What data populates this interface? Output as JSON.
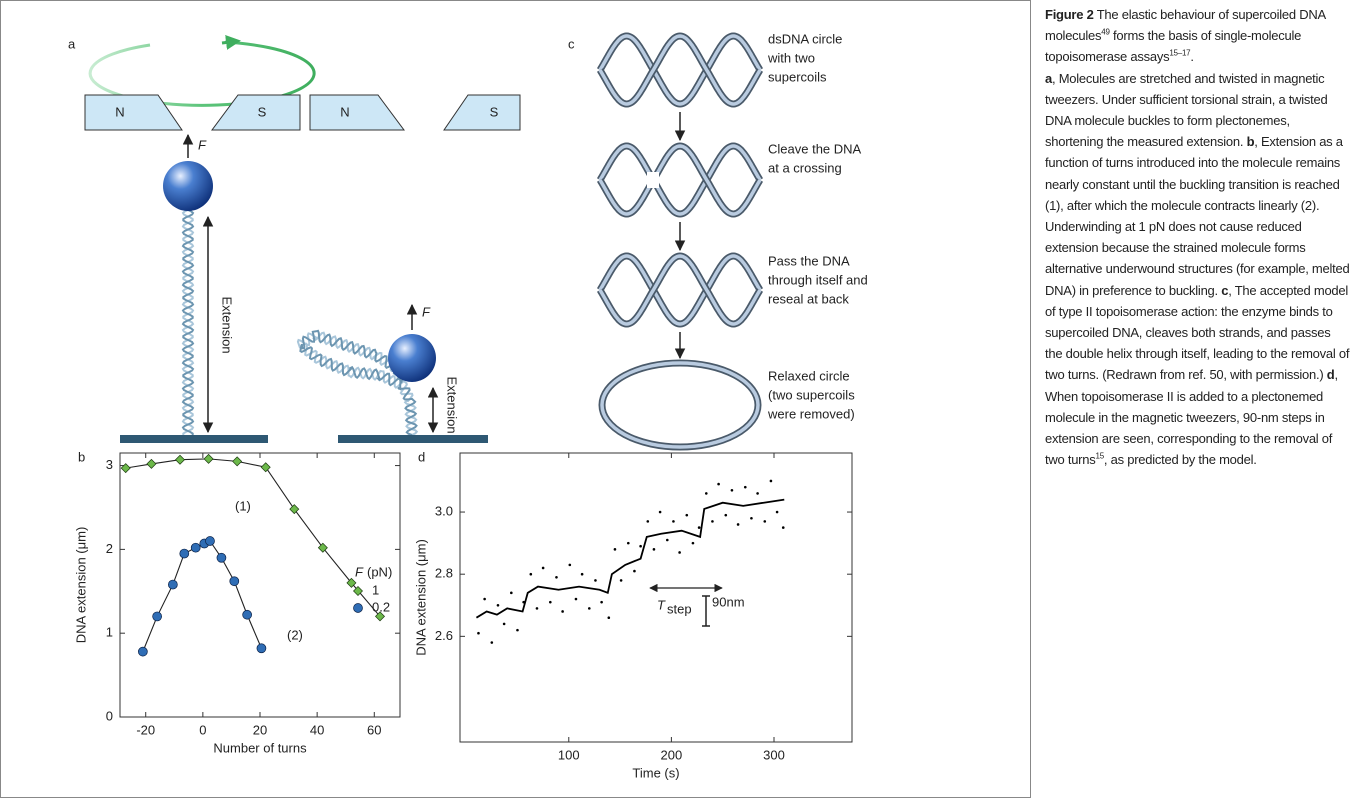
{
  "panel_a": {
    "label": "a",
    "magnets": [
      "N",
      "S",
      "N",
      "S"
    ],
    "force": [
      "F",
      "F"
    ],
    "extension": [
      "Extension",
      "Extension"
    ]
  },
  "panel_c": {
    "label": "c",
    "steps": [
      [
        "dsDNA circle",
        "with two",
        "supercoils"
      ],
      [
        "Cleave the DNA",
        "at a crossing"
      ],
      [
        "Pass the DNA",
        "through itself and",
        "reseal at back"
      ],
      [
        "Relaxed circle",
        "(two supercoils",
        "were removed)"
      ]
    ]
  },
  "chart_data": [
    {
      "type": "line",
      "panel_label": "b",
      "xlabel": "Number of turns",
      "ylabel": "DNA extension (μm)",
      "xlim": [
        -29,
        69
      ],
      "ylim": [
        0,
        3.15
      ],
      "xticks": [
        -20,
        0,
        20,
        40,
        60
      ],
      "yticks": [
        0,
        1,
        2,
        3
      ],
      "legend_title": [
        "F",
        "(pN)"
      ],
      "annotations": [
        "(1)",
        "(2)"
      ],
      "series": [
        {
          "name": "1",
          "color": "#6cb84a",
          "marker": "diamond",
          "x": [
            -27,
            -18,
            -8,
            2,
            12,
            22,
            32,
            42,
            52,
            62
          ],
          "values": [
            2.97,
            3.02,
            3.07,
            3.08,
            3.05,
            2.98,
            2.48,
            2.02,
            1.6,
            1.2
          ]
        },
        {
          "name": "0.2",
          "color": "#2f6db5",
          "marker": "circle",
          "x": [
            -21,
            -16,
            -10.5,
            -6.5,
            -2.5,
            0.5,
            2.5,
            6.5,
            11,
            15.5,
            20.5
          ],
          "values": [
            0.78,
            1.2,
            1.58,
            1.95,
            2.02,
            2.07,
            2.1,
            1.9,
            1.62,
            1.22,
            0.82
          ]
        }
      ]
    },
    {
      "type": "scatter",
      "panel_label": "d",
      "xlabel": "Time (s)",
      "ylabel": "DNA extension (μm)",
      "xlim": [
        -6,
        376
      ],
      "ylim": [
        2.26,
        3.19
      ],
      "xticks": [
        100,
        200,
        300
      ],
      "yticks": [
        {
          "value": 3,
          "label": "3.0"
        },
        2.8,
        2.6
      ],
      "color": "#000000",
      "points": {
        "x": [
          12,
          18,
          25,
          31,
          37,
          44,
          50,
          56,
          63,
          69,
          75,
          82,
          88,
          94,
          101,
          107,
          113,
          120,
          126,
          132,
          139,
          145,
          151,
          158,
          164,
          170,
          177,
          183,
          189,
          196,
          202,
          208,
          215,
          221,
          227,
          234,
          240,
          246,
          253,
          259,
          265,
          272,
          278,
          284,
          291,
          297,
          303,
          309
        ],
        "y": [
          2.61,
          2.72,
          2.58,
          2.7,
          2.64,
          2.74,
          2.62,
          2.71,
          2.8,
          2.69,
          2.82,
          2.71,
          2.79,
          2.68,
          2.83,
          2.72,
          2.8,
          2.69,
          2.78,
          2.71,
          2.66,
          2.88,
          2.78,
          2.9,
          2.81,
          2.89,
          2.97,
          2.88,
          3.0,
          2.91,
          2.97,
          2.87,
          2.99,
          2.9,
          2.95,
          3.06,
          2.97,
          3.09,
          2.99,
          3.07,
          2.96,
          3.08,
          2.98,
          3.06,
          2.97,
          3.1,
          3.0,
          2.95
        ]
      },
      "step_trace": {
        "x": [
          10,
          20,
          30,
          40,
          55,
          60,
          70,
          90,
          110,
          130,
          138,
          142,
          155,
          170,
          176,
          190,
          210,
          228,
          232,
          250,
          270,
          290,
          310
        ],
        "y": [
          2.66,
          2.68,
          2.67,
          2.69,
          2.68,
          2.74,
          2.76,
          2.75,
          2.76,
          2.75,
          2.74,
          2.8,
          2.83,
          2.85,
          2.92,
          2.93,
          2.94,
          2.92,
          3.01,
          3.03,
          3.02,
          3.03,
          3.04
        ]
      },
      "annotations": {
        "step_size": "90nm",
        "period": [
          "T",
          "step"
        ]
      }
    }
  ],
  "caption": [
    {
      "text": "Figure 2",
      "style": "bold"
    },
    {
      "text": " The elastic behaviour of supercoiled DNA molecules"
    },
    {
      "text": "49",
      "style": "sup"
    },
    {
      "text": " forms the basis of single-molecule topoisomerase assays"
    },
    {
      "text": "15–17",
      "style": "sup"
    },
    {
      "text": "."
    },
    {
      "text": "a",
      "style": "bold",
      "break": true
    },
    {
      "text": ", Molecules are stretched and twisted in magnetic tweezers. Under sufficient torsional strain, a twisted DNA molecule buckles to form plectonemes, shortening the measured extension. "
    },
    {
      "text": "b",
      "style": "bold"
    },
    {
      "text": ", Extension as a function of turns introduced into the molecule remains nearly constant until the buckling transition is reached (1), after which the molecule contracts linearly (2). Underwinding at 1 pN does not cause reduced extension because the strained molecule forms alternative underwound structures (for example, melted DNA) in preference to buckling. "
    },
    {
      "text": "c",
      "style": "bold"
    },
    {
      "text": ", The accepted model of type II topoisomerase action: the enzyme binds to supercoiled DNA, cleaves both strands, and passes the double helix through itself, leading to the removal of two turns. (Redrawn from ref. 50, with permission.) "
    },
    {
      "text": "d",
      "style": "bold"
    },
    {
      "text": ", When topoisomerase II is added to a plectonemed molecule in the magnetic tweezers, 90-nm steps in extension are seen, corresponding to the removal of two turns"
    },
    {
      "text": "15",
      "style": "sup"
    },
    {
      "text": ", as predicted by the model."
    }
  ]
}
